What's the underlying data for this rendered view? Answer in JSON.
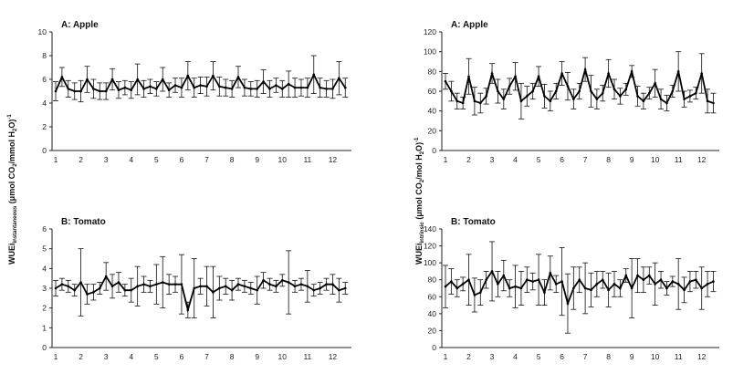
{
  "y_axis_labels": {
    "left": [
      "WUEi",
      "instantaneous",
      " (μmol CO",
      "2",
      "/mmol H",
      "2",
      "O)",
      "-1"
    ],
    "right": [
      "WUEi",
      "intrinsic",
      " (μmol CO",
      "2",
      "/mol H",
      "2",
      "O)",
      "-1"
    ]
  },
  "chart_data": [
    {
      "type": "line",
      "title": "A: Apple",
      "xlabel": "",
      "ylabel": "",
      "ylim": [
        0,
        10
      ],
      "y_ticks": [
        0,
        2,
        4,
        6,
        8,
        10
      ],
      "x_tick_labels": [
        "1",
        "2",
        "3",
        "4",
        "5",
        "6",
        "7",
        "8",
        "9",
        "10",
        "11",
        "12"
      ],
      "grid": false,
      "series": [
        {
          "x": [
            1,
            1.25,
            1.5,
            1.75,
            2,
            2.25,
            2.5,
            2.75,
            3,
            3.25,
            3.5,
            3.75,
            4,
            4.25,
            4.5,
            4.75,
            5,
            5.25,
            5.5,
            5.75,
            6,
            6.25,
            6.5,
            6.75,
            7,
            7.25,
            7.5,
            7.75,
            8,
            8.25,
            8.5,
            8.75,
            9,
            9.25,
            9.5,
            9.75,
            10,
            10.25,
            10.5,
            10.75,
            11,
            11.25,
            11.5,
            11.75,
            12,
            12.25,
            12.5
          ],
          "values": [
            5,
            6.2,
            5.2,
            5,
            5,
            6,
            5.2,
            5,
            5,
            6,
            5.1,
            5.3,
            5.1,
            6,
            5.2,
            5.4,
            5.2,
            6,
            5.1,
            5.5,
            5.3,
            6.3,
            5.3,
            5.5,
            5.4,
            6.3,
            5.4,
            5.3,
            5.2,
            6.2,
            5.3,
            5.2,
            5.2,
            5.8,
            5.2,
            5.5,
            5.2,
            5.6,
            5.3,
            5.3,
            5.3,
            6.4,
            5.3,
            5.2,
            5.2,
            6.1,
            5.3
          ],
          "err": [
            0.8,
            0.8,
            0.7,
            0.7,
            0.9,
            1.1,
            0.8,
            0.7,
            0.7,
            0.9,
            0.7,
            0.6,
            0.7,
            1.3,
            0.7,
            0.6,
            0.6,
            1,
            0.6,
            0.6,
            0.8,
            1.2,
            0.8,
            0.7,
            0.8,
            1.2,
            0.8,
            0.7,
            0.7,
            0.9,
            0.7,
            0.6,
            0.7,
            1,
            0.7,
            0.6,
            0.7,
            1.1,
            0.8,
            0.7,
            0.8,
            1.6,
            0.8,
            0.7,
            0.8,
            1.4,
            0.8
          ]
        }
      ]
    },
    {
      "type": "line",
      "title": "A: Apple",
      "xlabel": "",
      "ylabel": "",
      "ylim": [
        0,
        120
      ],
      "y_ticks": [
        0,
        20,
        40,
        60,
        80,
        100,
        120
      ],
      "x_tick_labels": [
        "1",
        "2",
        "3",
        "4",
        "5",
        "6",
        "7",
        "8",
        "9",
        "10",
        "11",
        "12"
      ],
      "grid": false,
      "series": [
        {
          "x": [
            1,
            1.25,
            1.5,
            1.75,
            2,
            2.25,
            2.5,
            2.75,
            3,
            3.25,
            3.5,
            3.75,
            4,
            4.25,
            4.5,
            4.75,
            5,
            5.25,
            5.5,
            5.75,
            6,
            6.25,
            6.5,
            6.75,
            7,
            7.25,
            7.5,
            7.75,
            8,
            8.25,
            8.5,
            8.75,
            9,
            9.25,
            9.5,
            9.75,
            10,
            10.25,
            10.5,
            10.75,
            11,
            11.25,
            11.5,
            11.75,
            12,
            12.25,
            12.5
          ],
          "values": [
            70,
            60,
            50,
            48,
            75,
            50,
            48,
            55,
            78,
            60,
            52,
            65,
            75,
            50,
            55,
            60,
            75,
            55,
            50,
            60,
            78,
            65,
            52,
            60,
            82,
            60,
            52,
            58,
            78,
            62,
            55,
            62,
            80,
            55,
            50,
            58,
            68,
            52,
            48,
            60,
            80,
            52,
            55,
            58,
            78,
            50,
            48
          ],
          "err": [
            8,
            10,
            8,
            6,
            18,
            14,
            10,
            8,
            10,
            12,
            10,
            8,
            14,
            18,
            10,
            8,
            10,
            12,
            10,
            8,
            12,
            14,
            10,
            8,
            12,
            16,
            10,
            8,
            14,
            10,
            8,
            6,
            6,
            10,
            8,
            6,
            14,
            10,
            8,
            6,
            20,
            8,
            6,
            6,
            20,
            12,
            10
          ]
        }
      ]
    },
    {
      "type": "line",
      "title": "B: Tomato",
      "xlabel": "",
      "ylabel": "",
      "ylim": [
        0,
        6
      ],
      "y_ticks": [
        0,
        1,
        2,
        3,
        4,
        5,
        6
      ],
      "x_tick_labels": [
        "1",
        "2",
        "3",
        "4",
        "5",
        "6",
        "7",
        "8",
        "9",
        "10",
        "11",
        "12"
      ],
      "grid": false,
      "series": [
        {
          "x": [
            1,
            1.25,
            1.5,
            1.75,
            2,
            2.25,
            2.5,
            2.75,
            3,
            3.25,
            3.5,
            3.75,
            4,
            4.25,
            4.5,
            4.75,
            5,
            5.25,
            5.5,
            5.75,
            6,
            6.25,
            6.5,
            6.75,
            7,
            7.25,
            7.5,
            7.75,
            8,
            8.25,
            8.5,
            8.75,
            9,
            9.25,
            9.5,
            9.75,
            10,
            10.25,
            10.5,
            10.75,
            11,
            11.25,
            11.5,
            11.75,
            12,
            12.25,
            12.5
          ],
          "values": [
            3,
            3.2,
            3.1,
            2.9,
            3.3,
            2.7,
            2.8,
            3,
            3.6,
            3.1,
            3.3,
            2.9,
            2.9,
            3.1,
            3.2,
            3.1,
            3.2,
            3.3,
            3.2,
            3.2,
            3.2,
            1.9,
            3,
            3.1,
            3.1,
            2.8,
            3,
            3.1,
            2.9,
            3.2,
            3.1,
            3,
            2.9,
            3.4,
            3.2,
            3.1,
            3.4,
            3.3,
            3.1,
            3.2,
            3.1,
            2.9,
            3,
            3.2,
            3.2,
            2.9,
            3
          ],
          "err": [
            0.4,
            0.3,
            0.3,
            0.3,
            1.7,
            0.5,
            0.4,
            0.3,
            0.7,
            0.6,
            0.5,
            0.3,
            0.6,
            1,
            0.4,
            0.3,
            1,
            1.3,
            0.5,
            0.4,
            1.5,
            0.4,
            1.5,
            0.4,
            1,
            1.3,
            0.6,
            0.4,
            0.5,
            0.3,
            0.3,
            0.3,
            0.7,
            0.4,
            0.3,
            0.3,
            0.3,
            1.6,
            0.3,
            0.3,
            0.8,
            0.3,
            0.3,
            0.3,
            0.5,
            0.6,
            0.3
          ]
        }
      ]
    },
    {
      "type": "line",
      "title": "B: Tomato",
      "xlabel": "",
      "ylabel": "",
      "ylim": [
        0,
        140
      ],
      "y_ticks": [
        0,
        20,
        40,
        60,
        80,
        100,
        120,
        140
      ],
      "x_tick_labels": [
        "1",
        "2",
        "3",
        "4",
        "5",
        "6",
        "7",
        "8",
        "9",
        "10",
        "11",
        "12"
      ],
      "grid": false,
      "series": [
        {
          "x": [
            1,
            1.25,
            1.5,
            1.75,
            2,
            2.25,
            2.5,
            2.75,
            3,
            3.25,
            3.5,
            3.75,
            4,
            4.25,
            4.5,
            4.75,
            5,
            5.25,
            5.5,
            5.75,
            6,
            6.25,
            6.5,
            6.75,
            7,
            7.25,
            7.5,
            7.75,
            8,
            8.25,
            8.5,
            8.75,
            9,
            9.25,
            9.5,
            9.75,
            10,
            10.25,
            10.5,
            10.75,
            11,
            11.25,
            11.5,
            11.75,
            12,
            12.25,
            12.5
          ],
          "values": [
            72,
            78,
            70,
            75,
            80,
            62,
            65,
            80,
            90,
            75,
            85,
            70,
            72,
            70,
            80,
            78,
            80,
            65,
            88,
            75,
            78,
            52,
            70,
            80,
            70,
            68,
            75,
            80,
            68,
            75,
            70,
            85,
            70,
            85,
            80,
            85,
            75,
            80,
            70,
            78,
            75,
            68,
            78,
            80,
            70,
            75,
            78
          ],
          "err": [
            25,
            15,
            10,
            8,
            30,
            20,
            15,
            10,
            35,
            15,
            18,
            10,
            25,
            20,
            15,
            10,
            30,
            15,
            20,
            10,
            40,
            35,
            25,
            15,
            30,
            20,
            15,
            10,
            20,
            15,
            10,
            8,
            35,
            20,
            15,
            10,
            25,
            10,
            8,
            6,
            30,
            15,
            12,
            10,
            25,
            15,
            12
          ]
        }
      ]
    }
  ]
}
